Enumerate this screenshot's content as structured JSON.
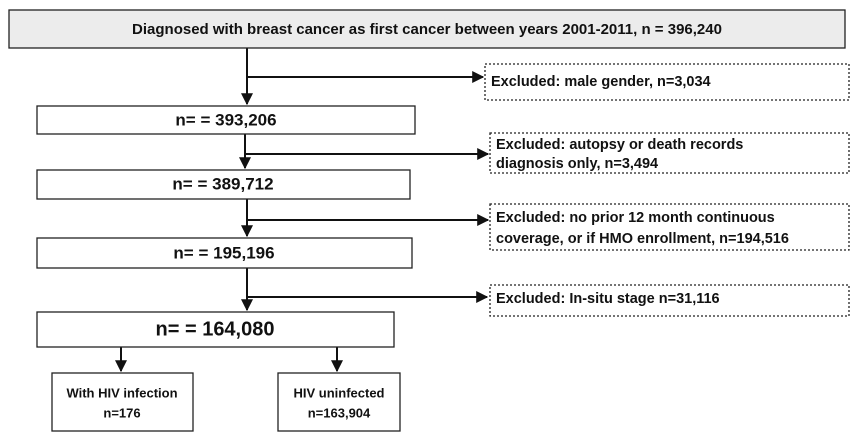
{
  "nodes": [
    {
      "label": "Diagnosed with breast cancer as first cancer between years 2001-2011, n = 396,240"
    },
    {
      "label": "n= = 393,206"
    },
    {
      "label": "n= = 389,712"
    },
    {
      "label": "n= = 195,196"
    },
    {
      "label": "n= = 164,080"
    },
    {
      "lines": [
        "With HIV infection",
        "n=176"
      ]
    },
    {
      "lines": [
        "HIV uninfected",
        "n=163,904"
      ]
    }
  ],
  "exclusions": [
    {
      "lines": [
        "Excluded: male gender, n=3,034"
      ]
    },
    {
      "lines": [
        "Excluded: autopsy or death records",
        "diagnosis only, n=3,494"
      ]
    },
    {
      "lines": [
        "Excluded: no prior 12 month continuous",
        "coverage, or if HMO enrollment, n=194,516"
      ]
    },
    {
      "lines": [
        "Excluded: In-situ stage n=31,116"
      ]
    }
  ]
}
